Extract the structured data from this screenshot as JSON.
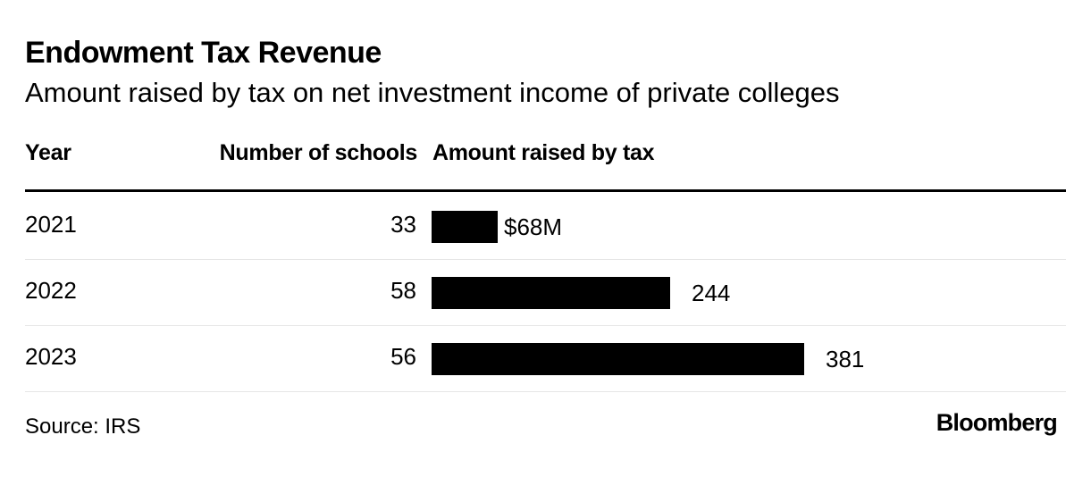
{
  "title": "Endowment Tax Revenue",
  "subtitle": "Amount raised by tax on net investment income of private colleges",
  "headers": {
    "year": "Year",
    "count": "Number of schools",
    "amount": "Amount raised by tax"
  },
  "chart_data": {
    "type": "bar",
    "orientation": "horizontal",
    "title": "Endowment Tax Revenue",
    "subtitle": "Amount raised by tax on net investment income of private colleges",
    "categories": [
      "2021",
      "2022",
      "2023"
    ],
    "values": [
      68,
      244,
      381
    ],
    "value_labels": [
      "$68M",
      "244",
      "381"
    ],
    "schools": [
      33,
      58,
      56
    ],
    "unit": "$M",
    "xlim": [
      0,
      381
    ],
    "grid": false,
    "legend": "none",
    "color": "#000000"
  },
  "footer": {
    "source": "Source: IRS",
    "brand": "Bloomberg"
  }
}
